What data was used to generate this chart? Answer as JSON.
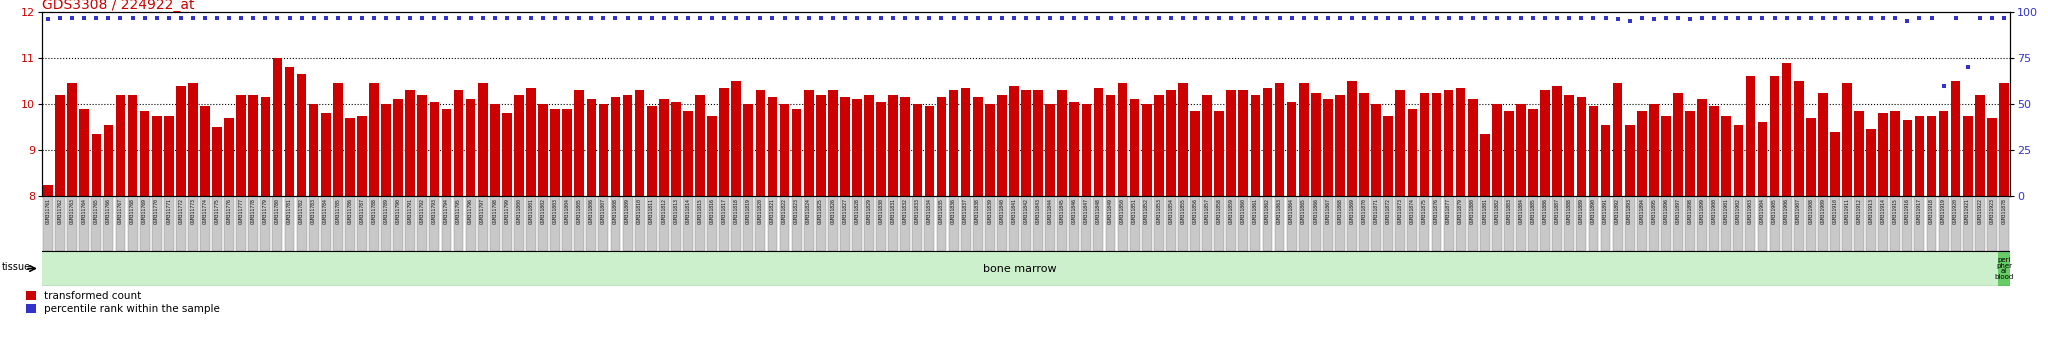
{
  "title": "GDS3308 / 224922_at",
  "title_color": "#cc0000",
  "ylim_left": [
    8,
    12
  ],
  "ylim_right": [
    0,
    100
  ],
  "yticks_left": [
    8,
    9,
    10,
    11,
    12
  ],
  "yticks_right": [
    0,
    25,
    50,
    75,
    100
  ],
  "bar_color": "#cc0000",
  "dot_color": "#3333cc",
  "bg_color": "#ffffff",
  "tissue_bg": "#ccf0cc",
  "tissue_highlight": "#66cc66",
  "sample_ids": [
    "GSM311761",
    "GSM311762",
    "GSM311763",
    "GSM311764",
    "GSM311765",
    "GSM311766",
    "GSM311767",
    "GSM311768",
    "GSM311769",
    "GSM311770",
    "GSM311771",
    "GSM311772",
    "GSM311773",
    "GSM311774",
    "GSM311775",
    "GSM311776",
    "GSM311777",
    "GSM311778",
    "GSM311779",
    "GSM311780",
    "GSM311781",
    "GSM311782",
    "GSM311783",
    "GSM311784",
    "GSM311785",
    "GSM311786",
    "GSM311787",
    "GSM311788",
    "GSM311789",
    "GSM311790",
    "GSM311791",
    "GSM311792",
    "GSM311793",
    "GSM311794",
    "GSM311795",
    "GSM311796",
    "GSM311797",
    "GSM311798",
    "GSM311799",
    "GSM311800",
    "GSM311801",
    "GSM311802",
    "GSM311803",
    "GSM311804",
    "GSM311805",
    "GSM311806",
    "GSM311807",
    "GSM311808",
    "GSM311809",
    "GSM311810",
    "GSM311811",
    "GSM311812",
    "GSM311813",
    "GSM311814",
    "GSM311815",
    "GSM311816",
    "GSM311817",
    "GSM311818",
    "GSM311819",
    "GSM311820",
    "GSM311821",
    "GSM311822",
    "GSM311823",
    "GSM311824",
    "GSM311825",
    "GSM311826",
    "GSM311827",
    "GSM311828",
    "GSM311829",
    "GSM311830",
    "GSM311831",
    "GSM311832",
    "GSM311833",
    "GSM311834",
    "GSM311835",
    "GSM311836",
    "GSM311837",
    "GSM311838",
    "GSM311839",
    "GSM311840",
    "GSM311841",
    "GSM311842",
    "GSM311843",
    "GSM311844",
    "GSM311845",
    "GSM311846",
    "GSM311847",
    "GSM311848",
    "GSM311849",
    "GSM311850",
    "GSM311851",
    "GSM311852",
    "GSM311853",
    "GSM311854",
    "GSM311855",
    "GSM311856",
    "GSM311857",
    "GSM311858",
    "GSM311859",
    "GSM311860",
    "GSM311861",
    "GSM311862",
    "GSM311863",
    "GSM311864",
    "GSM311865",
    "GSM311866",
    "GSM311867",
    "GSM311868",
    "GSM311869",
    "GSM311870",
    "GSM311871",
    "GSM311872",
    "GSM311873",
    "GSM311874",
    "GSM311875",
    "GSM311876",
    "GSM311877",
    "GSM311879",
    "GSM311880",
    "GSM311881",
    "GSM311882",
    "GSM311883",
    "GSM311884",
    "GSM311885",
    "GSM311886",
    "GSM311887",
    "GSM311888",
    "GSM311889",
    "GSM311890",
    "GSM311891",
    "GSM311892",
    "GSM311893",
    "GSM311894",
    "GSM311895",
    "GSM311896",
    "GSM311897",
    "GSM311898",
    "GSM311899",
    "GSM311900",
    "GSM311901",
    "GSM311902",
    "GSM311903",
    "GSM311904",
    "GSM311905",
    "GSM311906",
    "GSM311907",
    "GSM311908",
    "GSM311909",
    "GSM311910",
    "GSM311911",
    "GSM311912",
    "GSM311913",
    "GSM311914",
    "GSM311915",
    "GSM311916",
    "GSM311917",
    "GSM311918",
    "GSM311919",
    "GSM311920",
    "GSM311921",
    "GSM311922",
    "GSM311923",
    "GSM311878"
  ],
  "bar_values": [
    8.25,
    10.2,
    10.45,
    9.9,
    9.35,
    9.55,
    10.2,
    10.2,
    9.85,
    9.75,
    9.75,
    10.4,
    10.45,
    9.95,
    9.5,
    9.7,
    10.2,
    10.2,
    10.15,
    11.0,
    10.8,
    10.65,
    10.0,
    9.8,
    10.45,
    9.7,
    9.75,
    10.45,
    10.0,
    10.1,
    10.3,
    10.2,
    10.05,
    9.9,
    10.3,
    10.1,
    10.45,
    10.0,
    9.8,
    10.2,
    10.35,
    10.0,
    9.9,
    9.9,
    10.3,
    10.1,
    10.0,
    10.15,
    10.2,
    10.3,
    9.95,
    10.1,
    10.05,
    9.85,
    10.2,
    9.75,
    10.35,
    10.5,
    10.0,
    10.3,
    10.15,
    10.0,
    9.9,
    10.3,
    10.2,
    10.3,
    10.15,
    10.1,
    10.2,
    10.05,
    10.2,
    10.15,
    10.0,
    9.95,
    10.15,
    10.3,
    10.35,
    10.15,
    10.0,
    10.2,
    10.4,
    10.3,
    10.3,
    10.0,
    10.3,
    10.05,
    10.0,
    10.35,
    10.2,
    10.45,
    10.1,
    10.0,
    10.2,
    10.3,
    10.45,
    9.85,
    10.2,
    9.85,
    10.3,
    10.3,
    10.2,
    10.35,
    10.45,
    10.05,
    10.45,
    10.25,
    10.1,
    10.2,
    10.5,
    10.25,
    10.0,
    9.75,
    10.3,
    9.9,
    10.25,
    10.25,
    10.3,
    10.35,
    10.1,
    9.35,
    10.0,
    9.85,
    10.0,
    9.9,
    10.3,
    10.4,
    10.2,
    10.15,
    9.95,
    9.55,
    10.45,
    9.55,
    9.85,
    10.0,
    9.75,
    10.25,
    9.85,
    10.1,
    9.95,
    9.75,
    9.55,
    10.6,
    9.6,
    10.6,
    10.9,
    10.5,
    9.7,
    10.25,
    9.4,
    10.45,
    9.85,
    9.45,
    9.8,
    9.85,
    9.65,
    9.75,
    9.75,
    9.85,
    10.5,
    9.75,
    10.2,
    9.7,
    10.45
  ],
  "percentile_values": [
    96,
    97,
    97,
    97,
    97,
    97,
    97,
    97,
    97,
    97,
    97,
    97,
    97,
    97,
    97,
    97,
    97,
    97,
    97,
    97,
    97,
    97,
    97,
    97,
    97,
    97,
    97,
    97,
    97,
    97,
    97,
    97,
    97,
    97,
    97,
    97,
    97,
    97,
    97,
    97,
    97,
    97,
    97,
    97,
    97,
    97,
    97,
    97,
    97,
    97,
    97,
    97,
    97,
    97,
    97,
    97,
    97,
    97,
    97,
    97,
    97,
    97,
    97,
    97,
    97,
    97,
    97,
    97,
    97,
    97,
    97,
    97,
    97,
    97,
    97,
    97,
    97,
    97,
    97,
    97,
    97,
    97,
    97,
    97,
    97,
    97,
    97,
    97,
    97,
    97,
    97,
    97,
    97,
    97,
    97,
    97,
    97,
    97,
    97,
    97,
    97,
    97,
    97,
    97,
    97,
    97,
    97,
    97,
    97,
    97,
    97,
    97,
    97,
    97,
    97,
    97,
    97,
    97,
    97,
    97,
    97,
    97,
    97,
    97,
    97,
    97,
    97,
    97,
    97,
    97,
    96,
    95,
    97,
    96,
    97,
    97,
    96,
    97,
    97,
    97,
    97,
    97,
    97,
    97,
    97,
    97,
    97,
    97,
    97,
    97,
    97,
    97,
    97,
    97,
    95,
    97,
    97,
    60,
    97,
    70,
    97,
    97,
    97
  ],
  "bone_marrow_count": 162,
  "tissue_label": "bone marrow",
  "tissue2_label": "peri\npher\nal\nblood",
  "legend_labels": [
    "transformed count",
    "percentile rank within the sample"
  ],
  "legend_colors": [
    "#cc0000",
    "#3333cc"
  ]
}
